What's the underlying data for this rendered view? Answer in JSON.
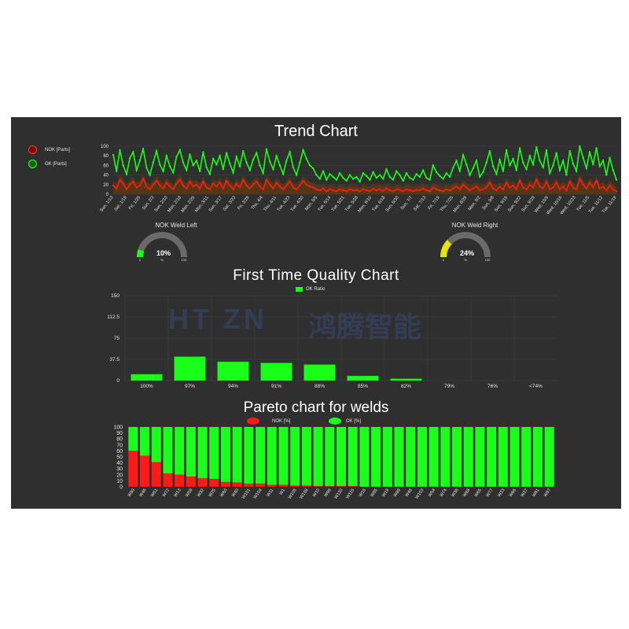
{
  "colors": {
    "background": "#2f2f2f",
    "ok": "#19ff19",
    "nok": "#ff1a1a",
    "grid": "#444444",
    "text": "#e6e6e6",
    "gauge_left": "#19ff19",
    "gauge_right": "#e5e500",
    "gauge_track": "#6a6a6a"
  },
  "watermark": {
    "latin": "HT ZN",
    "chinese": "鸿腾智能"
  },
  "trend": {
    "title": "Trend Chart",
    "legend": {
      "nok": "NOK [Parts]",
      "ok": "OK [Parts]"
    }
  },
  "gauges": [
    {
      "label": "NOK Weld Left",
      "value_text": "10%",
      "value": 10,
      "min": "0",
      "max": "100",
      "unit": "%"
    },
    {
      "label": "NOK Weld Right",
      "value_text": "24%",
      "value": 24,
      "min": "0",
      "max": "100",
      "unit": "%"
    }
  ],
  "ftq": {
    "title": "First Time Quality Chart",
    "legend": "OK Ratio"
  },
  "pareto": {
    "title": "Pareto chart for welds",
    "legend": {
      "nok": "NOK [%]",
      "ok": "OK [%]"
    }
  },
  "chart_data": [
    {
      "type": "line",
      "title": "Trend Chart",
      "ylim": [
        0,
        100
      ],
      "yticks": [
        0,
        20,
        40,
        60,
        80,
        100
      ],
      "grid": true,
      "legend_position": "top-left",
      "x_tick_labels": [
        "Sun, 1/13",
        "Sat, 1/19",
        "Fri, 1/25",
        "Sun, 2/3",
        "Sun, 2/10",
        "Mon, 2/18",
        "Mon, 2/25",
        "Mon, 3/11",
        "Sun, 3/17",
        "Sat, 3/23",
        "Fri, 3/29",
        "Thu, 4/4",
        "Thu, 4/11",
        "Tue, 4/23",
        "Tue, 4/30",
        "Mon, 5/6",
        "Tue, 5/14",
        "Tue, 5/21",
        "Tue, 5/28",
        "Mon, 6/10",
        "Tue, 6/18",
        "Sun, 6/30",
        "Sun, 7/7",
        "Sat, 7/13",
        "Fri, 7/19",
        "Thu, 7/25",
        "Mon, 8/26",
        "Mon, 9/2",
        "Sun, 9/8",
        "Sun, 9/15",
        "Sun, 9/22",
        "Sun, 9/29",
        "Wed, 10/9",
        "Wed, 10/16",
        "Wed, 10/23",
        "Tue, 11/5",
        "Tue, 11/12",
        "Tue, 11/19"
      ],
      "series": [
        {
          "name": "OK [Parts]",
          "values": [
            82,
            48,
            92,
            60,
            42,
            75,
            88,
            50,
            70,
            95,
            55,
            40,
            66,
            90,
            62,
            48,
            80,
            58,
            45,
            78,
            92,
            66,
            50,
            83,
            60,
            70,
            48,
            88,
            56,
            42,
            74,
            62,
            80,
            52,
            86,
            64,
            45,
            78,
            58,
            90,
            66,
            50,
            72,
            86,
            60,
            44,
            94,
            68,
            52,
            80,
            60,
            42,
            70,
            88,
            56,
            40,
            66,
            92,
            74,
            60,
            54,
            40,
            32,
            48,
            30,
            42,
            36,
            30,
            44,
            34,
            28,
            40,
            32,
            36,
            26,
            44,
            38,
            30,
            46,
            34,
            40,
            32,
            52,
            36,
            30,
            48,
            40,
            28,
            44,
            34,
            30,
            42,
            36,
            50,
            34,
            30,
            60,
            46,
            38,
            32,
            44,
            36,
            55,
            70,
            48,
            82,
            62,
            40,
            54,
            70,
            36,
            46,
            66,
            90,
            58,
            42,
            72,
            48,
            92,
            60,
            74,
            50,
            96,
            66,
            52,
            80,
            62,
            98,
            70,
            56,
            92,
            44,
            60,
            86,
            50,
            70,
            40,
            90,
            64,
            48,
            100,
            76,
            54,
            88,
            62,
            96,
            58,
            70,
            40,
            76,
            50,
            30
          ]
        },
        {
          "name": "NOK [Parts]",
          "values": [
            18,
            12,
            30,
            22,
            10,
            20,
            26,
            14,
            18,
            32,
            16,
            10,
            20,
            28,
            18,
            12,
            24,
            16,
            10,
            22,
            30,
            18,
            12,
            26,
            16,
            20,
            12,
            26,
            14,
            10,
            22,
            16,
            24,
            12,
            28,
            18,
            10,
            22,
            14,
            30,
            18,
            12,
            20,
            26,
            16,
            10,
            30,
            20,
            12,
            24,
            16,
            10,
            18,
            26,
            14,
            10,
            18,
            28,
            20,
            16,
            14,
            10,
            8,
            12,
            6,
            10,
            8,
            6,
            10,
            8,
            6,
            10,
            8,
            9,
            6,
            10,
            8,
            6,
            11,
            8,
            10,
            7,
            12,
            8,
            6,
            10,
            9,
            6,
            10,
            8,
            6,
            9,
            8,
            12,
            8,
            6,
            14,
            10,
            8,
            6,
            10,
            8,
            12,
            16,
            10,
            20,
            14,
            8,
            12,
            16,
            8,
            10,
            14,
            24,
            12,
            8,
            16,
            10,
            24,
            14,
            18,
            10,
            28,
            14,
            10,
            20,
            14,
            30,
            16,
            12,
            26,
            10,
            14,
            24,
            10,
            16,
            8,
            26,
            14,
            10,
            32,
            20,
            12,
            24,
            14,
            28,
            12,
            16,
            8,
            18,
            10,
            6
          ]
        }
      ]
    },
    {
      "type": "bar",
      "title": "First Time Quality Chart",
      "categories": [
        "100%",
        "97%",
        "94%",
        "91%",
        "88%",
        "85%",
        "82%",
        "79%",
        "76%",
        "<74%"
      ],
      "series": [
        {
          "name": "OK Ratio",
          "values": [
            11,
            42,
            33,
            31,
            28,
            8,
            3,
            0,
            0,
            0
          ]
        }
      ],
      "ylim": [
        0,
        150
      ],
      "yticks": [
        "0",
        "37.5",
        "75",
        "112.5",
        "150"
      ],
      "grid": true,
      "legend_position": "top-center"
    },
    {
      "type": "bar",
      "stacked": true,
      "title": "Pareto chart for welds",
      "categories": [
        "W80",
        "W46",
        "W51",
        "W72",
        "W13",
        "W59",
        "W32",
        "W25",
        "W60",
        "W40",
        "W101",
        "W104",
        "W11",
        "W1",
        "W105",
        "W108",
        "W10",
        "W98",
        "W120",
        "W115",
        "W16",
        "W85",
        "W19",
        "W89",
        "W48",
        "W103",
        "W54",
        "W74",
        "W38",
        "W68",
        "W65",
        "W77",
        "W23",
        "W66",
        "W27",
        "W81",
        "W97"
      ],
      "series": [
        {
          "name": "NOK [%]",
          "values": [
            60,
            52,
            41,
            22,
            20,
            17,
            14,
            13,
            8,
            7,
            5,
            5,
            3,
            3,
            2,
            2,
            1,
            1,
            1,
            1,
            0,
            0,
            0,
            0,
            0,
            0,
            0,
            0,
            0,
            0,
            0,
            0,
            0,
            0,
            0,
            0,
            0
          ]
        },
        {
          "name": "OK [%]",
          "values": [
            40,
            48,
            59,
            78,
            80,
            83,
            86,
            87,
            92,
            93,
            95,
            95,
            97,
            97,
            98,
            98,
            99,
            99,
            99,
            99,
            100,
            100,
            100,
            100,
            100,
            100,
            100,
            100,
            100,
            100,
            100,
            100,
            100,
            100,
            100,
            100,
            100
          ]
        }
      ],
      "ylim": [
        0,
        100
      ],
      "yticks": [
        0,
        10,
        20,
        30,
        40,
        50,
        60,
        70,
        80,
        90,
        100
      ],
      "legend_position": "top-center"
    }
  ]
}
